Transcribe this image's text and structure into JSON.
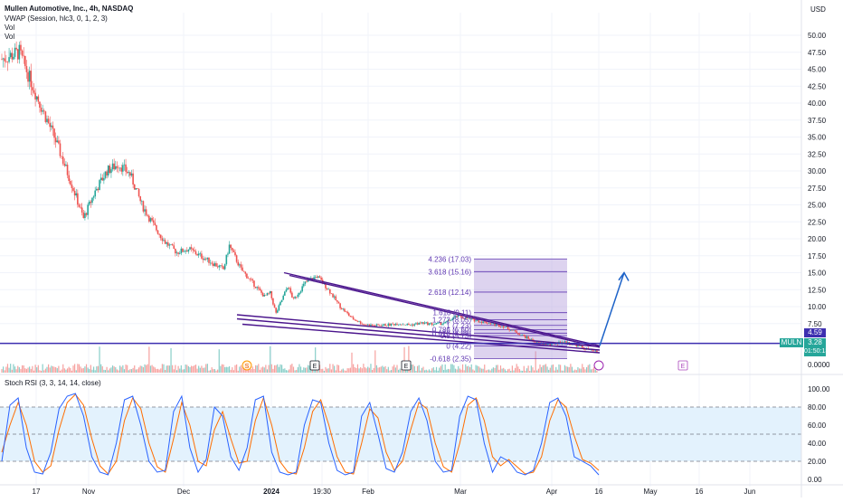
{
  "header": {
    "symbol_line": "Mullen Automotive, Inc., 4h, NASDAQ",
    "indicators": [
      "VWAP (Session, hlc3, 0, 1, 2, 3)",
      "Vol",
      "Vol"
    ],
    "currency": "USD",
    "stoch_label": "Stoch RSI (3, 3, 14, 14, close)"
  },
  "price_badges": {
    "line_value": "4.59",
    "symbol": "MULN",
    "last_price": "3.28",
    "countdown": "01:50:13"
  },
  "colors": {
    "up": "#26a69a",
    "down": "#ef5350",
    "fib_fill": "#b39ddb",
    "fib_line": "#5e35b1",
    "trend": "#4a148c",
    "arrow": "#1e63c8",
    "stoch_k": "#2962ff",
    "stoch_d": "#ff6d00",
    "stoch_band": "#e3f2fd"
  },
  "chart_data": {
    "type": "candlestick",
    "title": "Mullen Automotive, Inc., 4h, NASDAQ",
    "ylabel": "USD",
    "ylim": [
      0,
      52
    ],
    "y_ticks": [
      "50.00",
      "47.50",
      "45.00",
      "42.50",
      "40.00",
      "37.50",
      "35.00",
      "32.50",
      "30.00",
      "27.50",
      "25.00",
      "22.50",
      "20.00",
      "17.50",
      "15.00",
      "12.50",
      "10.00",
      "7.50",
      "0.0000"
    ],
    "x_ticks": [
      "17",
      "Nov",
      "Dec",
      "2024",
      "19:30",
      "Feb",
      "Mar",
      "Apr",
      "16",
      "May",
      "16",
      "Jun"
    ],
    "price_trend": [
      {
        "t": 0,
        "v": 46.5
      },
      {
        "t": 3,
        "v": 47.5
      },
      {
        "t": 6,
        "v": 41
      },
      {
        "t": 9,
        "v": 35
      },
      {
        "t": 12,
        "v": 28
      },
      {
        "t": 14,
        "v": 23
      },
      {
        "t": 16,
        "v": 27
      },
      {
        "t": 18,
        "v": 30
      },
      {
        "t": 20,
        "v": 31
      },
      {
        "t": 22,
        "v": 29.5
      },
      {
        "t": 24,
        "v": 25
      },
      {
        "t": 26,
        "v": 22
      },
      {
        "t": 28,
        "v": 19.5
      },
      {
        "t": 30,
        "v": 18
      },
      {
        "t": 32,
        "v": 18.5
      },
      {
        "t": 34,
        "v": 17.5
      },
      {
        "t": 36,
        "v": 16.5
      },
      {
        "t": 38,
        "v": 15.5
      },
      {
        "t": 39,
        "v": 19
      },
      {
        "t": 41,
        "v": 15.5
      },
      {
        "t": 43,
        "v": 13.5
      },
      {
        "t": 45,
        "v": 11.5
      },
      {
        "t": 46,
        "v": 12
      },
      {
        "t": 47,
        "v": 9
      },
      {
        "t": 48,
        "v": 11
      },
      {
        "t": 49,
        "v": 13
      },
      {
        "t": 50,
        "v": 11
      },
      {
        "t": 52,
        "v": 13.5
      },
      {
        "t": 54,
        "v": 14.5
      },
      {
        "t": 56,
        "v": 12.5
      },
      {
        "t": 58,
        "v": 10
      },
      {
        "t": 60,
        "v": 8.3
      },
      {
        "t": 62,
        "v": 7.4
      },
      {
        "t": 64,
        "v": 7.2
      },
      {
        "t": 66,
        "v": 7.3
      },
      {
        "t": 68,
        "v": 7.5
      },
      {
        "t": 70,
        "v": 7.3
      },
      {
        "t": 72,
        "v": 7.6
      },
      {
        "t": 74,
        "v": 7.4
      },
      {
        "t": 76,
        "v": 7.6
      },
      {
        "t": 78,
        "v": 8.6
      },
      {
        "t": 80,
        "v": 8.2
      },
      {
        "t": 82,
        "v": 7.8
      },
      {
        "t": 84,
        "v": 7.5
      },
      {
        "t": 86,
        "v": 7.1
      },
      {
        "t": 88,
        "v": 6.3
      },
      {
        "t": 90,
        "v": 5.4
      },
      {
        "t": 92,
        "v": 4.6
      },
      {
        "t": 94,
        "v": 4.4
      },
      {
        "t": 96,
        "v": 4.8
      },
      {
        "t": 98,
        "v": 4.5
      },
      {
        "t": 100,
        "v": 3.8
      },
      {
        "t": 102,
        "v": 3.28
      }
    ],
    "fib_levels": [
      {
        "label": "4.236 (17.03)",
        "value": 17.03
      },
      {
        "label": "3.618 (15.16)",
        "value": 15.16
      },
      {
        "label": "2.618 (12.14)",
        "value": 12.14
      },
      {
        "label": "1.618 (9.11)",
        "value": 9.11
      },
      {
        "label": "1.272 (8.05)",
        "value": 8.05
      },
      {
        "label": "1 (7.23)",
        "value": 7.23
      },
      {
        "label": "0.786 (6.60)",
        "value": 6.6
      },
      {
        "label": "0.618 (6.09)",
        "value": 6.09
      },
      {
        "label": "0.5 (5.73)",
        "value": 5.73
      },
      {
        "label": "0 (4.22)",
        "value": 4.22
      },
      {
        "label": "-0.618 (2.35)",
        "value": 2.35
      }
    ],
    "horizontal_line": 4.59,
    "last_price": 3.28,
    "annotations": [
      "S",
      "E",
      "E",
      "E"
    ],
    "stoch_rsi": {
      "ylim": [
        0,
        100
      ],
      "ticks": [
        "100.00",
        "80.00",
        "60.00",
        "40.00",
        "20.00",
        "0.00"
      ],
      "bands": [
        20,
        50,
        80
      ],
      "k": [
        20,
        82,
        90,
        35,
        8,
        6,
        30,
        78,
        92,
        95,
        70,
        25,
        8,
        5,
        40,
        88,
        92,
        60,
        20,
        8,
        10,
        75,
        92,
        35,
        8,
        22,
        80,
        70,
        25,
        10,
        35,
        88,
        92,
        30,
        8,
        5,
        8,
        60,
        88,
        85,
        40,
        10,
        5,
        8,
        70,
        85,
        50,
        12,
        8,
        30,
        75,
        90,
        65,
        20,
        8,
        10,
        70,
        92,
        88,
        40,
        8,
        25,
        20,
        8,
        5,
        10,
        40,
        85,
        90,
        70,
        25,
        20,
        15,
        5
      ],
      "d": [
        30,
        60,
        85,
        60,
        20,
        8,
        15,
        55,
        85,
        94,
        82,
        45,
        15,
        6,
        20,
        65,
        90,
        78,
        40,
        14,
        8,
        45,
        85,
        60,
        20,
        15,
        55,
        75,
        45,
        18,
        20,
        65,
        90,
        60,
        20,
        8,
        6,
        35,
        75,
        88,
        60,
        25,
        8,
        6,
        40,
        78,
        68,
        30,
        10,
        20,
        55,
        85,
        78,
        40,
        14,
        8,
        40,
        82,
        90,
        65,
        25,
        15,
        22,
        14,
        6,
        8,
        25,
        65,
        88,
        80,
        48,
        22,
        18,
        10
      ]
    }
  }
}
